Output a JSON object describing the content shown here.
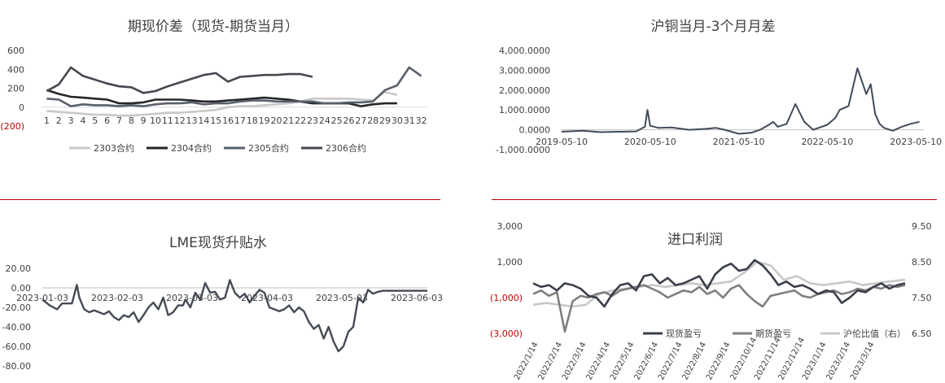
{
  "chart_data": [
    {
      "type": "line",
      "title": "期现价差（现货-期货当月）",
      "categories": [
        "1",
        "2",
        "3",
        "4",
        "5",
        "6",
        "7",
        "8",
        "9",
        "10",
        "11",
        "12",
        "13",
        "14",
        "15",
        "16",
        "17",
        "18",
        "19",
        "20",
        "21",
        "22",
        "23",
        "24",
        "25",
        "26",
        "27",
        "28",
        "29",
        "30",
        "31",
        "32"
      ],
      "ylim": [
        -200,
        600
      ],
      "yticks": [
        "600",
        "400",
        "200",
        "0",
        "(200)"
      ],
      "legend_position": "bottom",
      "colors": {
        "2303合约": "#c8c8c8",
        "2304合约": "#262626",
        "2305合约": "#59606b",
        "2306合约": "#44484f"
      },
      "series": [
        {
          "name": "2303合约",
          "values": [
            -40,
            -50,
            -60,
            -70,
            -80,
            -80,
            -90,
            -90,
            -80,
            -70,
            -60,
            -60,
            -50,
            -40,
            -30,
            0,
            10,
            10,
            20,
            30,
            40,
            60,
            90,
            90,
            90,
            90,
            80,
            70,
            160,
            130,
            null,
            null
          ]
        },
        {
          "name": "2304合约",
          "values": [
            180,
            140,
            110,
            100,
            90,
            80,
            40,
            40,
            50,
            80,
            80,
            80,
            70,
            60,
            60,
            70,
            80,
            90,
            100,
            90,
            80,
            60,
            40,
            40,
            40,
            40,
            10,
            30,
            40,
            40,
            null,
            null
          ]
        },
        {
          "name": "2305合约",
          "values": [
            90,
            80,
            10,
            30,
            20,
            20,
            10,
            20,
            10,
            30,
            40,
            40,
            50,
            30,
            40,
            40,
            60,
            70,
            70,
            60,
            60,
            60,
            60,
            40,
            40,
            50,
            50,
            60,
            180,
            230,
            420,
            330
          ]
        },
        {
          "name": "2306合约",
          "values": [
            170,
            240,
            420,
            330,
            290,
            250,
            220,
            210,
            150,
            170,
            220,
            260,
            300,
            340,
            360,
            270,
            320,
            330,
            340,
            340,
            350,
            350,
            320,
            null,
            null,
            null,
            null,
            null,
            null,
            null,
            null,
            null
          ]
        }
      ]
    },
    {
      "type": "line",
      "title": "沪铜当月-3个月月差",
      "x_tick_labels": [
        "2019-05-10",
        "2020-05-10",
        "2021-05-10",
        "2022-05-10",
        "2023-05-10"
      ],
      "ylim": [
        -1000,
        4000
      ],
      "yticks": [
        "4,000.0000",
        "3,000.0000",
        "2,000.0000",
        "1,000.0000",
        "0.0000",
        "-1,000.0000"
      ],
      "color": "#424b5a",
      "series": [
        {
          "x": [
            2019.36,
            2019.6,
            2019.8,
            2020.0,
            2020.2,
            2020.3,
            2020.33,
            2020.36,
            2020.45,
            2020.6,
            2020.8,
            2021.0,
            2021.1,
            2021.2,
            2021.36,
            2021.5,
            2021.6,
            2021.7,
            2021.75,
            2021.8,
            2021.9,
            2022.0,
            2022.1,
            2022.2,
            2022.36,
            2022.45,
            2022.5,
            2022.6,
            2022.7,
            2022.8,
            2022.85,
            2022.9,
            2022.95,
            2023.0,
            2023.1,
            2023.2,
            2023.3,
            2023.4
          ],
          "values": [
            -100,
            -50,
            -120,
            -100,
            -80,
            150,
            1000,
            200,
            100,
            120,
            0,
            50,
            100,
            0,
            -200,
            -150,
            0,
            250,
            400,
            150,
            300,
            1300,
            400,
            0,
            250,
            600,
            1000,
            1200,
            3100,
            1800,
            2300,
            800,
            300,
            100,
            -50,
            150,
            300,
            400
          ]
        }
      ]
    },
    {
      "type": "line",
      "title": "LME现货升贴水",
      "x_tick_labels": [
        "2023-01-03",
        "2023-02-03",
        "2023-03-03",
        "2023-04-03",
        "2023-05-03",
        "2023-06-03"
      ],
      "ylim": [
        -80,
        20
      ],
      "yticks": [
        "20.00",
        "0.00",
        "-20.00",
        "-40.00",
        "-60.00",
        "-80.00"
      ],
      "color": "#454b55",
      "series": [
        {
          "x": [
            0,
            3,
            6,
            8,
            10,
            12,
            14,
            15,
            17,
            19,
            21,
            23,
            25,
            27,
            29,
            31,
            33,
            35,
            37,
            39,
            41,
            43,
            45,
            47,
            49,
            51,
            53,
            55,
            57,
            58,
            60,
            62,
            64,
            66,
            68,
            70,
            72,
            74,
            76,
            78,
            80,
            82,
            84,
            86,
            88,
            90,
            92,
            94,
            96,
            98,
            100,
            102,
            104,
            106,
            108,
            110,
            112,
            114,
            116,
            118,
            120,
            122,
            124,
            126,
            128,
            130,
            132,
            134,
            136,
            138,
            140,
            142,
            144,
            146,
            148,
            150,
            152,
            154,
            156
          ],
          "values": [
            -12,
            -18,
            -22,
            -16,
            -16,
            -16,
            3,
            -10,
            -22,
            -25,
            -23,
            -25,
            -27,
            -24,
            -30,
            -33,
            -28,
            -30,
            -25,
            -35,
            -28,
            -20,
            -15,
            -22,
            -10,
            -28,
            -25,
            -18,
            -18,
            -12,
            -20,
            -5,
            -12,
            5,
            -5,
            -4,
            -12,
            -10,
            8,
            -5,
            -10,
            -6,
            -15,
            -8,
            -2,
            -5,
            -20,
            -22,
            -24,
            -22,
            -18,
            -25,
            -20,
            -24,
            -35,
            -42,
            -38,
            -52,
            -40,
            -55,
            -65,
            -60,
            -45,
            -40,
            -10,
            -15,
            -2,
            -6,
            -4,
            -3,
            -3,
            -3,
            -3,
            -3,
            -3,
            -3,
            -3,
            -3,
            -3
          ]
        }
      ]
    },
    {
      "type": "line",
      "title": "进口利润",
      "x_tick_labels": [
        "2022/1/14",
        "2022/2/14",
        "2022/3/14",
        "2022/4/14",
        "2022/5/14",
        "2022/6/14",
        "2022/7/14",
        "2022/8/14",
        "2022/9/14",
        "2022/10/14",
        "2022/11/14",
        "2022/12/14",
        "2023/1/14",
        "2023/2/14",
        "2023/3/14"
      ],
      "ylim": [
        -3000,
        3000
      ],
      "yticks": [
        "3,000",
        "1,000",
        "(1,000)",
        "(3,000)"
      ],
      "y2lim": [
        6.5,
        9.5
      ],
      "y2ticks": [
        "9.50",
        "8.50",
        "7.50",
        "6.50"
      ],
      "legend_position": "bottom",
      "colors": {
        "现货盈亏": "#3a3f4a",
        "期货盈亏": "#7f7f7f",
        "沪伦比值（右）": "#c8c8c8"
      },
      "series": [
        {
          "name": "现货盈亏",
          "x": [
            0,
            0.3,
            0.6,
            0.9,
            1.2,
            1.5,
            1.8,
            2.1,
            2.4,
            2.7,
            3.0,
            3.3,
            3.6,
            3.9,
            4.2,
            4.5,
            4.8,
            5.1,
            5.4,
            5.7,
            6.0,
            6.3,
            6.6,
            6.9,
            7.2,
            7.5,
            7.8,
            8.1,
            8.4,
            8.7,
            9.0,
            9.3,
            9.6,
            9.9,
            10.2,
            10.5,
            10.8,
            11.1,
            11.4,
            11.7,
            12.0,
            12.3,
            12.6,
            12.9,
            13.2,
            13.5,
            13.8,
            14.1
          ],
          "values": [
            -200,
            -400,
            -300,
            -600,
            -200,
            -300,
            -500,
            -900,
            -1000,
            -1500,
            -800,
            -300,
            -200,
            -600,
            200,
            300,
            -200,
            100,
            -300,
            -200,
            0,
            200,
            -500,
            300,
            700,
            900,
            500,
            600,
            1100,
            800,
            300,
            -300,
            -100,
            -400,
            -300,
            -500,
            -800,
            -600,
            -700,
            -1300,
            -1000,
            -600,
            -700,
            -400,
            -200,
            -500,
            -300,
            -200
          ]
        },
        {
          "name": "期货盈亏",
          "x": [
            0,
            0.3,
            0.6,
            0.9,
            1.2,
            1.5,
            1.8,
            2.1,
            2.4,
            2.7,
            3.0,
            3.3,
            3.6,
            3.9,
            4.2,
            4.5,
            4.8,
            5.1,
            5.4,
            5.7,
            6.0,
            6.3,
            6.6,
            6.9,
            7.2,
            7.5,
            7.8,
            8.1,
            8.4,
            8.7,
            9.0,
            9.3,
            9.6,
            9.9,
            10.2,
            10.5,
            10.8,
            11.1,
            11.4,
            11.7,
            12.0,
            12.3,
            12.6,
            12.9,
            13.2,
            13.5,
            13.8,
            14.1
          ],
          "values": [
            -800,
            -600,
            -900,
            -700,
            -2900,
            -1200,
            -900,
            -1000,
            -800,
            -700,
            -900,
            -600,
            -500,
            -400,
            -300,
            -500,
            -700,
            -1000,
            -800,
            -600,
            -700,
            -400,
            -800,
            -600,
            -1000,
            -500,
            -300,
            -800,
            -1200,
            -1500,
            -900,
            -800,
            -700,
            -600,
            -900,
            -1000,
            -800,
            -700,
            -600,
            -800,
            -700,
            -500,
            -600,
            -400,
            -500,
            -300,
            -400,
            -300
          ]
        },
        {
          "name": "沪伦比值（右）",
          "x": [
            0,
            0.5,
            1.0,
            1.5,
            2.0,
            2.5,
            3.0,
            3.5,
            4.0,
            4.5,
            5.0,
            5.5,
            6.0,
            6.5,
            7.0,
            7.5,
            8.0,
            8.5,
            9.0,
            9.5,
            10.0,
            10.5,
            11.0,
            11.5,
            12.0,
            12.5,
            13.0,
            13.5,
            14.1
          ],
          "values": [
            7.3,
            7.35,
            7.3,
            7.25,
            7.3,
            7.6,
            7.7,
            7.75,
            7.8,
            7.85,
            7.8,
            7.85,
            7.9,
            7.85,
            7.9,
            7.95,
            8.2,
            8.5,
            8.4,
            8.0,
            8.1,
            7.9,
            7.85,
            7.9,
            7.95,
            7.85,
            7.9,
            7.95,
            8.0
          ]
        }
      ]
    }
  ]
}
